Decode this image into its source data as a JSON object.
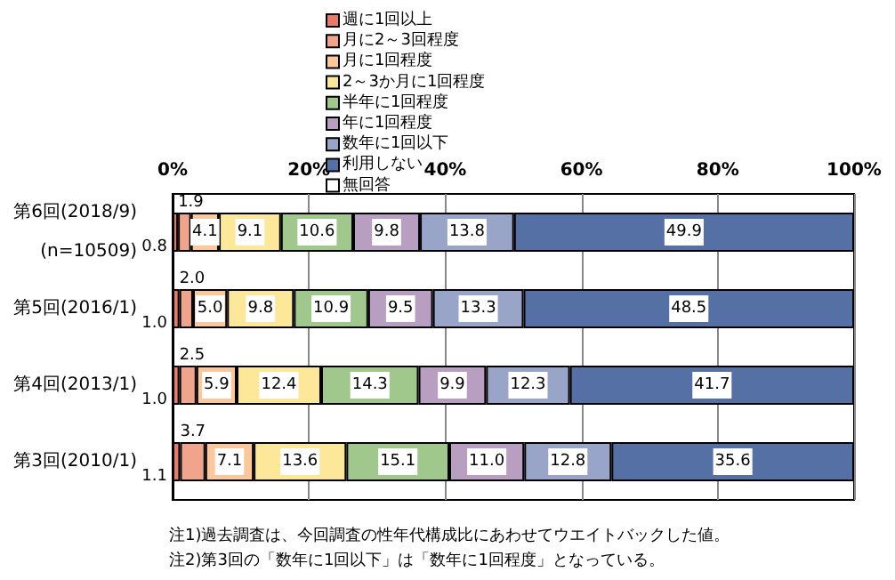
{
  "chart_data": {
    "type": "bar",
    "orientation": "horizontal",
    "stacked": true,
    "categories": [
      "第6回(2018/9)\n(n=10509)",
      "第5回(2016/1)",
      "第4回(2013/1)",
      "第3回(2010/1)"
    ],
    "series": [
      {
        "name": "週に1回以上",
        "color": "#e97a6a",
        "values": [
          0.8,
          1.0,
          1.0,
          1.1
        ],
        "value_labels": [
          "0.8",
          "1.0",
          "1.0",
          "1.1"
        ]
      },
      {
        "name": "月に2～3回程度",
        "color": "#f0a48c",
        "values": [
          1.9,
          2.0,
          2.5,
          3.7
        ],
        "value_labels": [
          "1.9",
          "2.0",
          "2.5",
          "3.7"
        ]
      },
      {
        "name": "月に1回程度",
        "color": "#fbc79b",
        "values": [
          4.1,
          5.0,
          5.9,
          7.1
        ],
        "value_labels": [
          "4.1",
          "5.0",
          "5.9",
          "7.1"
        ]
      },
      {
        "name": "2～3か月に1回程度",
        "color": "#fde89a",
        "values": [
          9.1,
          9.8,
          12.4,
          13.6
        ],
        "value_labels": [
          "9.1",
          "9.8",
          "12.4",
          "13.6"
        ]
      },
      {
        "name": "半年に1回程度",
        "color": "#a0c88c",
        "values": [
          10.6,
          10.9,
          14.3,
          15.1
        ],
        "value_labels": [
          "10.6",
          "10.9",
          "14.3",
          "15.1"
        ]
      },
      {
        "name": "年に1回程度",
        "color": "#b89ec0",
        "values": [
          9.8,
          9.5,
          9.9,
          11.0
        ],
        "value_labels": [
          "9.8",
          "9.5",
          "9.9",
          "11.0"
        ]
      },
      {
        "name": "数年に1回以下",
        "color": "#98a4c8",
        "values": [
          13.8,
          13.3,
          12.3,
          12.8
        ],
        "value_labels": [
          "13.8",
          "13.3",
          "12.3",
          "12.8"
        ]
      },
      {
        "name": "利用しない",
        "color": "#5470a4",
        "values": [
          49.9,
          48.5,
          41.7,
          35.6
        ],
        "value_labels": [
          "49.9",
          "48.5",
          "41.7",
          "35.6"
        ]
      },
      {
        "name": "無回答",
        "color": "#ffffff",
        "values": [
          null,
          null,
          null,
          null
        ]
      }
    ],
    "xlim": [
      0,
      100
    ],
    "xticks": [
      {
        "value": 0,
        "label": "0%"
      },
      {
        "value": 20,
        "label": "20%"
      },
      {
        "value": 40,
        "label": "40%"
      },
      {
        "value": 60,
        "label": "60%"
      },
      {
        "value": 80,
        "label": "80%"
      },
      {
        "value": 100,
        "label": "100%"
      }
    ],
    "grid": "x",
    "legend": "top",
    "annotations": [
      "注1)過去調査は、今回調査の性年代構成比にあわせてウエイトバックした値。",
      "注2)第3回の「数年に1回以下」は「数年に1回程度」となっている。"
    ]
  }
}
